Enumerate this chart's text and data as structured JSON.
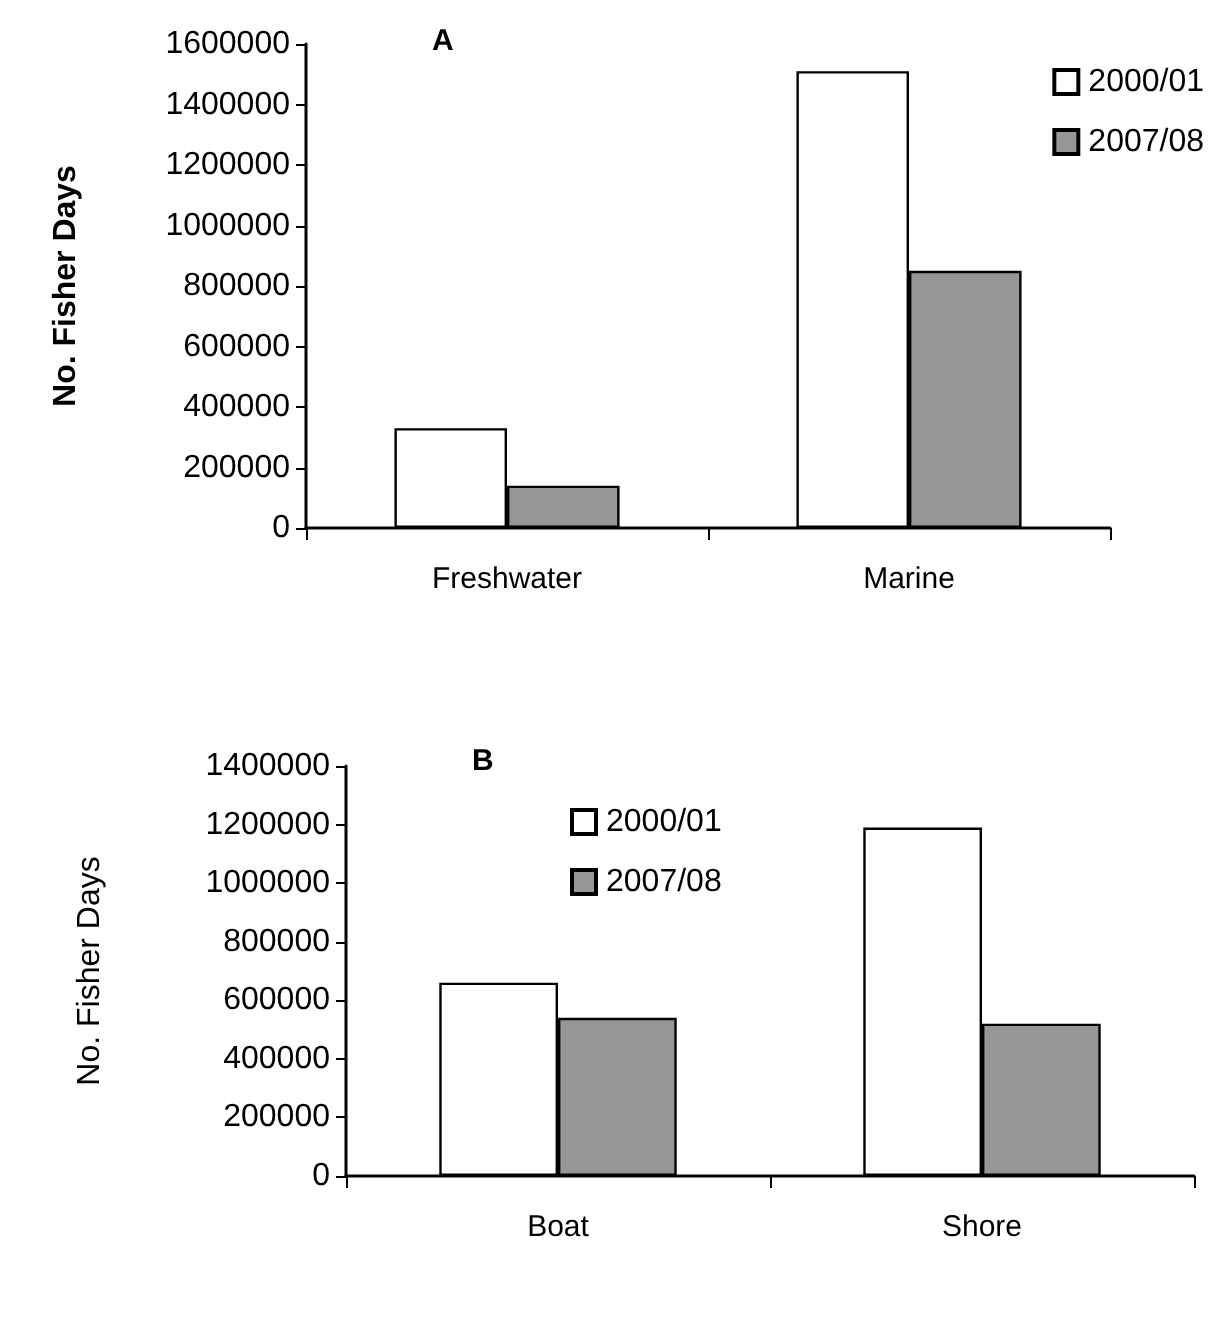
{
  "chart_data": [
    {
      "type": "bar",
      "title": "A",
      "ylabel": "No. Fisher Days",
      "categories": [
        "Freshwater",
        "Marine"
      ],
      "series": [
        {
          "name": "2000/01",
          "color": "#ffffff",
          "values": [
            330000,
            1510000
          ]
        },
        {
          "name": "2007/08",
          "color": "#969696",
          "values": [
            140000,
            850000
          ]
        }
      ],
      "ylim": [
        0,
        1600000
      ],
      "yticks": [
        0,
        200000,
        400000,
        600000,
        800000,
        1000000,
        1200000,
        1400000,
        1600000
      ],
      "grid": false,
      "legend": "right"
    },
    {
      "type": "bar",
      "title": "B",
      "ylabel": "No. Fisher Days",
      "categories": [
        "Boat",
        "Shore"
      ],
      "series": [
        {
          "name": "2000/01",
          "color": "#ffffff",
          "values": [
            660000,
            1190000
          ]
        },
        {
          "name": "2007/08",
          "color": "#969696",
          "values": [
            540000,
            520000
          ]
        }
      ],
      "ylim": [
        0,
        1400000
      ],
      "yticks": [
        0,
        200000,
        400000,
        600000,
        800000,
        1000000,
        1200000,
        1400000
      ],
      "grid": false,
      "legend": "top"
    }
  ]
}
